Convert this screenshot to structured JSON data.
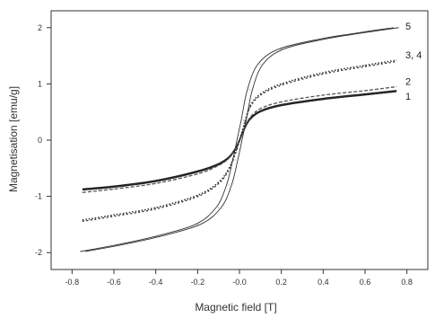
{
  "chart_data": {
    "type": "line",
    "title": "",
    "xlabel": "Magnetic field [T]",
    "ylabel": "Magnetisation [emu/g]",
    "xlim": [
      -0.9,
      0.9
    ],
    "ylim": [
      -2.3,
      2.3
    ],
    "x_ticks": [
      -0.8,
      -0.6,
      -0.4,
      -0.2,
      -0.0,
      0.2,
      0.4,
      0.6,
      0.8
    ],
    "x_tick_labels": [
      "-0.8",
      "-0.6",
      "-0.4",
      "-0.2",
      "-0.0",
      "0.2",
      "0.4",
      "0.6",
      "0.8"
    ],
    "y_ticks": [
      -2,
      -1,
      0,
      1,
      2
    ],
    "y_tick_labels": [
      "-2",
      "-1",
      "0",
      "1",
      "2"
    ],
    "grid": false,
    "legend": "none",
    "series": [
      {
        "name": "1",
        "style": "solid-thick",
        "color": "#222222",
        "x": [
          -0.75,
          -0.6,
          -0.4,
          -0.2,
          -0.1,
          -0.05,
          -0.02,
          0.0,
          0.02,
          0.05,
          0.1,
          0.2,
          0.4,
          0.6,
          0.75
        ],
        "y": [
          -0.87,
          -0.82,
          -0.72,
          -0.55,
          -0.42,
          -0.3,
          -0.15,
          0.0,
          0.18,
          0.38,
          0.52,
          0.63,
          0.74,
          0.82,
          0.88
        ]
      },
      {
        "name": "2",
        "style": "dashed",
        "color": "#555555",
        "x": [
          -0.75,
          -0.6,
          -0.4,
          -0.2,
          -0.1,
          -0.05,
          -0.02,
          0.0,
          0.02,
          0.05,
          0.1,
          0.2,
          0.4,
          0.6,
          0.75
        ],
        "y": [
          -0.93,
          -0.87,
          -0.77,
          -0.6,
          -0.45,
          -0.32,
          -0.16,
          0.0,
          0.19,
          0.4,
          0.56,
          0.68,
          0.8,
          0.88,
          0.95
        ]
      },
      {
        "name": "3, 4",
        "style": "dotted",
        "color": "#333333",
        "x": [
          -0.75,
          -0.6,
          -0.4,
          -0.2,
          -0.1,
          -0.05,
          -0.02,
          0.0,
          0.02,
          0.05,
          0.1,
          0.2,
          0.4,
          0.6,
          0.75
        ],
        "y": [
          -1.42,
          -1.33,
          -1.2,
          -0.98,
          -0.75,
          -0.5,
          -0.22,
          0.0,
          0.25,
          0.6,
          0.82,
          1.0,
          1.2,
          1.33,
          1.42
        ]
      },
      {
        "name": "5",
        "style": "thin-loop",
        "color": "#333333",
        "x": [
          -0.75,
          -0.6,
          -0.4,
          -0.2,
          -0.1,
          -0.05,
          -0.02,
          0.0,
          0.02,
          0.05,
          0.1,
          0.2,
          0.4,
          0.6,
          0.75
        ],
        "y": [
          -1.98,
          -1.88,
          -1.72,
          -1.5,
          -1.2,
          -0.8,
          -0.35,
          0.0,
          0.35,
          0.9,
          1.35,
          1.62,
          1.8,
          1.92,
          2.0
        ]
      }
    ]
  }
}
